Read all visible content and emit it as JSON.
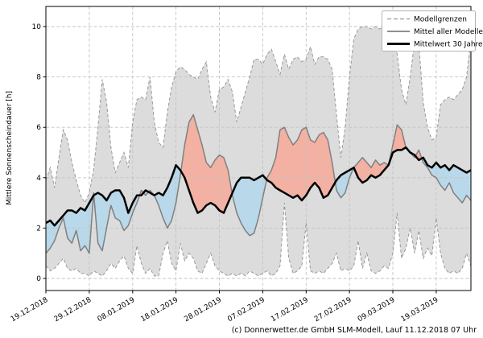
{
  "chart_data": {
    "type": "area",
    "title": "",
    "ylabel": "Mittlere Sonnenscheindauer [h]",
    "x_start_date": "19.12.2018",
    "x_step": "1 day",
    "x_tick_days": [
      0,
      10,
      20,
      30,
      40,
      50,
      60,
      70,
      80,
      90
    ],
    "x_tick_labels": [
      "19.12.2018",
      "29.12.2018",
      "08.01.2019",
      "18.01.2019",
      "28.01.2019",
      "07.02.2019",
      "17.02.2019",
      "27.02.2019",
      "09.03.2019",
      "19.03.2019"
    ],
    "y_ticks": [
      0,
      2,
      4,
      6,
      8,
      10
    ],
    "ylim": [
      -0.5,
      10.8
    ],
    "grid": true,
    "legend_position": "upper right",
    "legend": [
      "Modellgrenzen",
      "Mittel aller Modelle",
      "Mittelwert 30 Jahre"
    ],
    "series": [
      {
        "name": "Modellgrenzen (obere Grenze)",
        "values": [
          3.9,
          4.4,
          3.6,
          4.8,
          5.9,
          5.5,
          4.6,
          3.9,
          3.3,
          3.0,
          3.4,
          4.3,
          6.0,
          7.9,
          7.0,
          5.2,
          4.2,
          4.6,
          5.0,
          4.4,
          6.2,
          7.1,
          7.2,
          7.1,
          8.0,
          6.2,
          5.4,
          5.2,
          6.6,
          7.6,
          8.2,
          8.4,
          8.3,
          8.1,
          8.0,
          7.9,
          8.3,
          8.6,
          7.2,
          6.6,
          7.5,
          7.6,
          7.9,
          7.4,
          6.2,
          6.8,
          7.4,
          8.0,
          8.7,
          8.7,
          8.5,
          8.9,
          9.1,
          8.6,
          8.1,
          8.9,
          8.3,
          8.7,
          8.8,
          8.6,
          8.7,
          9.2,
          8.5,
          8.8,
          8.8,
          8.7,
          8.3,
          6.5,
          4.8,
          6.0,
          8.0,
          9.5,
          9.9,
          10.0,
          10.0,
          9.9,
          10.0,
          9.9,
          10.0,
          9.9,
          9.7,
          8.9,
          7.5,
          6.9,
          8.0,
          9.4,
          9.3,
          7.0,
          6.0,
          5.5,
          5.6,
          6.9,
          7.1,
          7.2,
          7.1,
          7.3,
          7.5,
          8.0,
          9.5
        ]
      },
      {
        "name": "Modellgrenzen (untere Grenze)",
        "values": [
          0.5,
          0.3,
          0.4,
          0.6,
          0.8,
          0.4,
          0.3,
          0.4,
          0.2,
          0.2,
          0.1,
          0.3,
          0.2,
          0.1,
          0.3,
          0.6,
          0.4,
          0.7,
          0.9,
          0.4,
          0.2,
          1.3,
          0.6,
          0.2,
          0.4,
          0.1,
          0.1,
          1.0,
          1.5,
          0.6,
          0.3,
          1.4,
          0.7,
          1.0,
          0.8,
          0.3,
          0.2,
          0.6,
          1.0,
          0.5,
          0.3,
          0.2,
          0.1,
          0.2,
          0.1,
          0.2,
          0.1,
          0.3,
          0.2,
          0.1,
          0.2,
          0.3,
          0.1,
          0.2,
          0.5,
          3.0,
          0.8,
          0.2,
          0.3,
          0.5,
          2.2,
          0.3,
          0.2,
          0.3,
          0.2,
          0.4,
          0.6,
          1.0,
          0.3,
          0.4,
          0.3,
          0.5,
          1.5,
          0.4,
          1.0,
          0.3,
          0.2,
          0.3,
          0.5,
          0.4,
          1.0,
          2.6,
          0.8,
          1.2,
          2.0,
          1.0,
          1.9,
          0.8,
          1.2,
          0.9,
          2.4,
          1.0,
          0.4,
          0.2,
          0.3,
          0.2,
          0.4,
          1.0,
          0.5
        ]
      },
      {
        "name": "Mittel aller Modelle",
        "values": [
          1.0,
          1.2,
          1.5,
          2.0,
          2.4,
          1.6,
          1.4,
          1.9,
          1.1,
          1.3,
          1.0,
          3.4,
          1.4,
          1.1,
          2.0,
          2.9,
          2.4,
          2.3,
          1.9,
          2.1,
          2.6,
          3.0,
          3.5,
          3.3,
          3.5,
          3.3,
          2.9,
          2.4,
          2.0,
          2.3,
          3.0,
          4.1,
          5.3,
          6.2,
          6.5,
          5.9,
          5.3,
          4.6,
          4.4,
          4.7,
          4.9,
          4.8,
          4.3,
          3.3,
          2.6,
          2.2,
          1.9,
          1.7,
          1.8,
          2.4,
          3.2,
          4.0,
          4.3,
          4.8,
          5.9,
          6.0,
          5.6,
          5.3,
          5.5,
          5.9,
          6.0,
          5.5,
          5.4,
          5.7,
          5.8,
          5.5,
          4.6,
          3.5,
          3.2,
          3.4,
          4.0,
          4.4,
          4.6,
          4.8,
          4.6,
          4.4,
          4.7,
          4.5,
          4.6,
          4.5,
          5.3,
          6.1,
          5.9,
          5.2,
          5.0,
          4.8,
          5.1,
          4.6,
          4.4,
          4.1,
          4.0,
          3.7,
          3.5,
          3.8,
          3.4,
          3.2,
          3.0,
          3.3,
          3.1
        ]
      },
      {
        "name": "Mittelwert 30 Jahre",
        "values": [
          2.2,
          2.3,
          2.1,
          2.3,
          2.5,
          2.7,
          2.7,
          2.6,
          2.8,
          2.7,
          3.0,
          3.3,
          3.4,
          3.3,
          3.1,
          3.4,
          3.5,
          3.5,
          3.2,
          2.6,
          3.0,
          3.3,
          3.3,
          3.5,
          3.4,
          3.3,
          3.4,
          3.3,
          3.6,
          4.0,
          4.5,
          4.3,
          4.0,
          3.5,
          3.0,
          2.6,
          2.7,
          2.9,
          3.0,
          2.9,
          2.7,
          2.6,
          3.0,
          3.4,
          3.8,
          4.0,
          4.0,
          4.0,
          3.9,
          4.0,
          4.1,
          3.9,
          3.8,
          3.6,
          3.5,
          3.4,
          3.3,
          3.2,
          3.3,
          3.1,
          3.3,
          3.6,
          3.8,
          3.6,
          3.2,
          3.3,
          3.6,
          3.9,
          4.1,
          4.2,
          4.3,
          4.4,
          4.0,
          3.8,
          3.9,
          4.1,
          4.0,
          4.1,
          4.3,
          4.5,
          5.0,
          5.1,
          5.1,
          5.2,
          5.0,
          4.9,
          4.7,
          4.8,
          4.5,
          4.4,
          4.6,
          4.4,
          4.5,
          4.3,
          4.5,
          4.4,
          4.3,
          4.2,
          4.3
        ]
      }
    ],
    "colors": {
      "band_fill": "#dcdcdc",
      "band_edge": "#999999",
      "model_mean_line": "#808080",
      "mean30_line": "#000000",
      "above_normal_fill": "#f2b1a3",
      "below_normal_fill": "#b9d8e9",
      "grid": "#c3c3c3",
      "frame": "#000000"
    }
  },
  "footer": {
    "credit": "(c) Donnerwetter.de GmbH SLM-Modell, Lauf 11.12.2018 07 Uhr"
  }
}
